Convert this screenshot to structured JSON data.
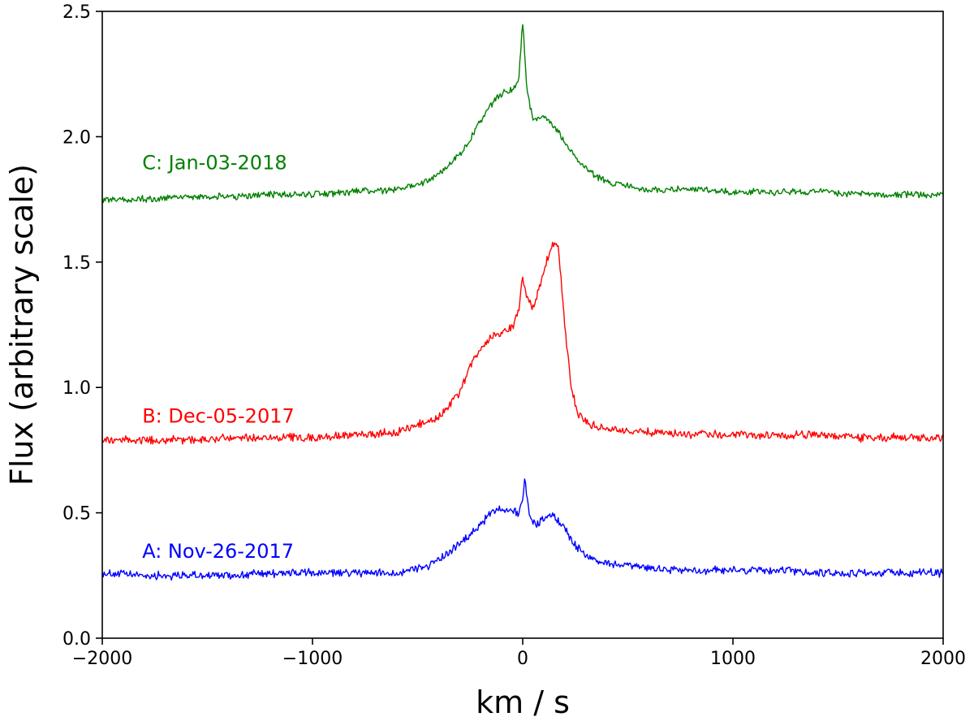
{
  "chart_data": {
    "type": "line",
    "title": "",
    "xlabel": "km / s",
    "ylabel": "Flux (arbitrary scale)",
    "xlim": [
      -2000,
      2000
    ],
    "ylim": [
      0.0,
      2.5
    ],
    "xticks": [
      -2000,
      -1000,
      0,
      1000,
      2000
    ],
    "xtick_labels": [
      "−2000",
      "−1000",
      "0",
      "1000",
      "2000"
    ],
    "yticks": [
      0.0,
      0.5,
      1.0,
      1.5,
      2.0,
      2.5
    ],
    "ytick_labels": [
      "0.0",
      "0.5",
      "1.0",
      "1.5",
      "2.0",
      "2.5"
    ],
    "grid": false,
    "series": [
      {
        "name": "A: Nov-26-2017",
        "color": "#0000ff",
        "label_anchor": [
          -1810,
          0.32
        ],
        "x": [
          -2000,
          -1800,
          -1600,
          -1400,
          -1200,
          -1000,
          -800,
          -600,
          -450,
          -350,
          -250,
          -150,
          -100,
          -50,
          -20,
          0,
          10,
          30,
          60,
          100,
          150,
          200,
          250,
          300,
          350,
          450,
          600,
          800,
          1000,
          1200,
          1400,
          1600,
          1800,
          2000
        ],
        "y": [
          0.26,
          0.25,
          0.25,
          0.25,
          0.26,
          0.26,
          0.26,
          0.26,
          0.29,
          0.34,
          0.41,
          0.5,
          0.52,
          0.51,
          0.5,
          0.55,
          0.63,
          0.5,
          0.45,
          0.48,
          0.49,
          0.44,
          0.37,
          0.33,
          0.31,
          0.29,
          0.28,
          0.27,
          0.27,
          0.27,
          0.26,
          0.26,
          0.26,
          0.26
        ],
        "noise": 0.013
      },
      {
        "name": "B: Dec-05-2017",
        "color": "#ff0000",
        "label_anchor": [
          -1810,
          0.86
        ],
        "x": [
          -2000,
          -1800,
          -1600,
          -1400,
          -1200,
          -1000,
          -800,
          -600,
          -500,
          -400,
          -300,
          -250,
          -200,
          -150,
          -100,
          -50,
          -20,
          0,
          20,
          50,
          80,
          120,
          150,
          170,
          200,
          230,
          260,
          300,
          400,
          600,
          800,
          1000,
          1200,
          1400,
          1600,
          1800,
          2000
        ],
        "y": [
          0.79,
          0.79,
          0.79,
          0.8,
          0.8,
          0.8,
          0.81,
          0.82,
          0.85,
          0.88,
          0.98,
          1.08,
          1.16,
          1.2,
          1.22,
          1.24,
          1.3,
          1.44,
          1.36,
          1.32,
          1.4,
          1.52,
          1.58,
          1.56,
          1.25,
          1.0,
          0.9,
          0.86,
          0.83,
          0.82,
          0.81,
          0.81,
          0.81,
          0.81,
          0.8,
          0.8,
          0.8
        ],
        "noise": 0.013
      },
      {
        "name": "C: Jan-03-2018",
        "color": "#008000",
        "label_anchor": [
          -1810,
          1.87
        ],
        "x": [
          -2000,
          -1800,
          -1600,
          -1400,
          -1200,
          -1000,
          -800,
          -600,
          -500,
          -400,
          -300,
          -250,
          -200,
          -150,
          -100,
          -50,
          -20,
          0,
          20,
          50,
          100,
          150,
          200,
          250,
          300,
          350,
          400,
          500,
          600,
          800,
          1000,
          1200,
          1400,
          1600,
          1800,
          2000
        ],
        "y": [
          1.75,
          1.75,
          1.76,
          1.76,
          1.77,
          1.77,
          1.78,
          1.79,
          1.81,
          1.85,
          1.93,
          1.99,
          2.06,
          2.13,
          2.17,
          2.19,
          2.22,
          2.46,
          2.18,
          2.07,
          2.08,
          2.04,
          1.98,
          1.92,
          1.88,
          1.84,
          1.82,
          1.8,
          1.79,
          1.79,
          1.78,
          1.78,
          1.78,
          1.77,
          1.77,
          1.77
        ],
        "noise": 0.011
      }
    ]
  }
}
